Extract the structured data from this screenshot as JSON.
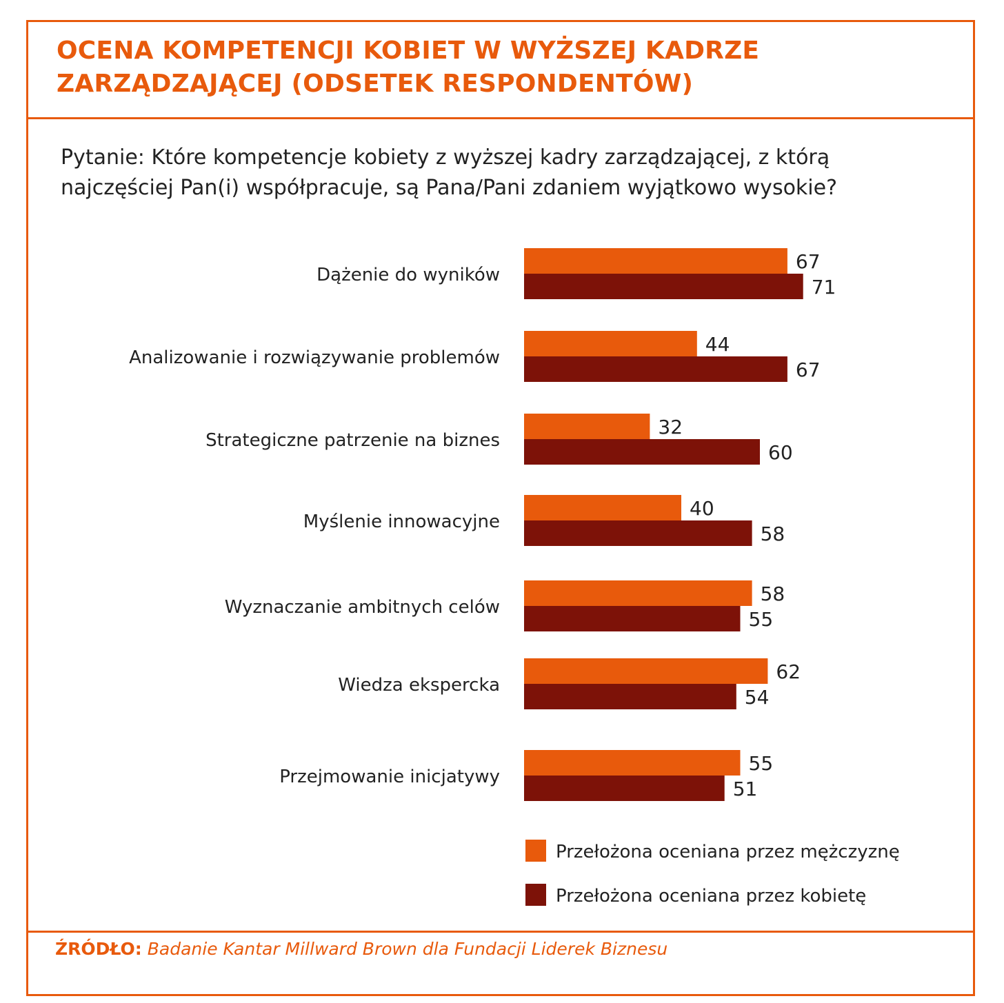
{
  "title": "OCENA KOMPETENCJI KOBIET W WYŻSZEJ KADRZE ZARZĄDZAJĄCEJ (ODSETEK RESPONDENTÓW)",
  "question": "Pytanie: Które kompetencje kobiety z wyższej kadry zarządzającej, z którą najczęściej Pan(i) współpracuje, są Pana/Pani zdaniem wyjątkowo wysokie?",
  "source": {
    "key": "ŹRÓDŁO:",
    "text": "Badanie Kantar Millward Brown dla Fundacji Liderek Biznesu"
  },
  "colors": {
    "accent": "#e85a0c",
    "series_men": "#e85a0c",
    "series_women": "#7d1208"
  },
  "chart_data": {
    "type": "bar",
    "orientation": "horizontal",
    "title": "OCENA KOMPETENCJI KOBIET W WYŻSZEJ KADRZE ZARZĄDZAJĄCEJ (ODSETEK RESPONDENTÓW)",
    "categories": [
      "Dążenie do wyników",
      "Analizowanie i rozwiązywanie problemów",
      "Strategiczne patrzenie na biznes",
      "Myślenie innowacyjne",
      "Wyznaczanie ambitnych celów",
      "Wiedza ekspercka",
      "Przejmowanie inicjatywy"
    ],
    "series": [
      {
        "name": "Przełożona oceniana przez mężczyznę",
        "color": "#e85a0c",
        "values": [
          67,
          44,
          32,
          40,
          58,
          62,
          55
        ]
      },
      {
        "name": "Przełożona oceniana przez kobietę",
        "color": "#7d1208",
        "values": [
          71,
          67,
          60,
          58,
          55,
          54,
          51
        ]
      }
    ],
    "data_labels": true,
    "grid": false,
    "legend_position": "bottom-right",
    "xlim": [
      0,
      100
    ]
  }
}
